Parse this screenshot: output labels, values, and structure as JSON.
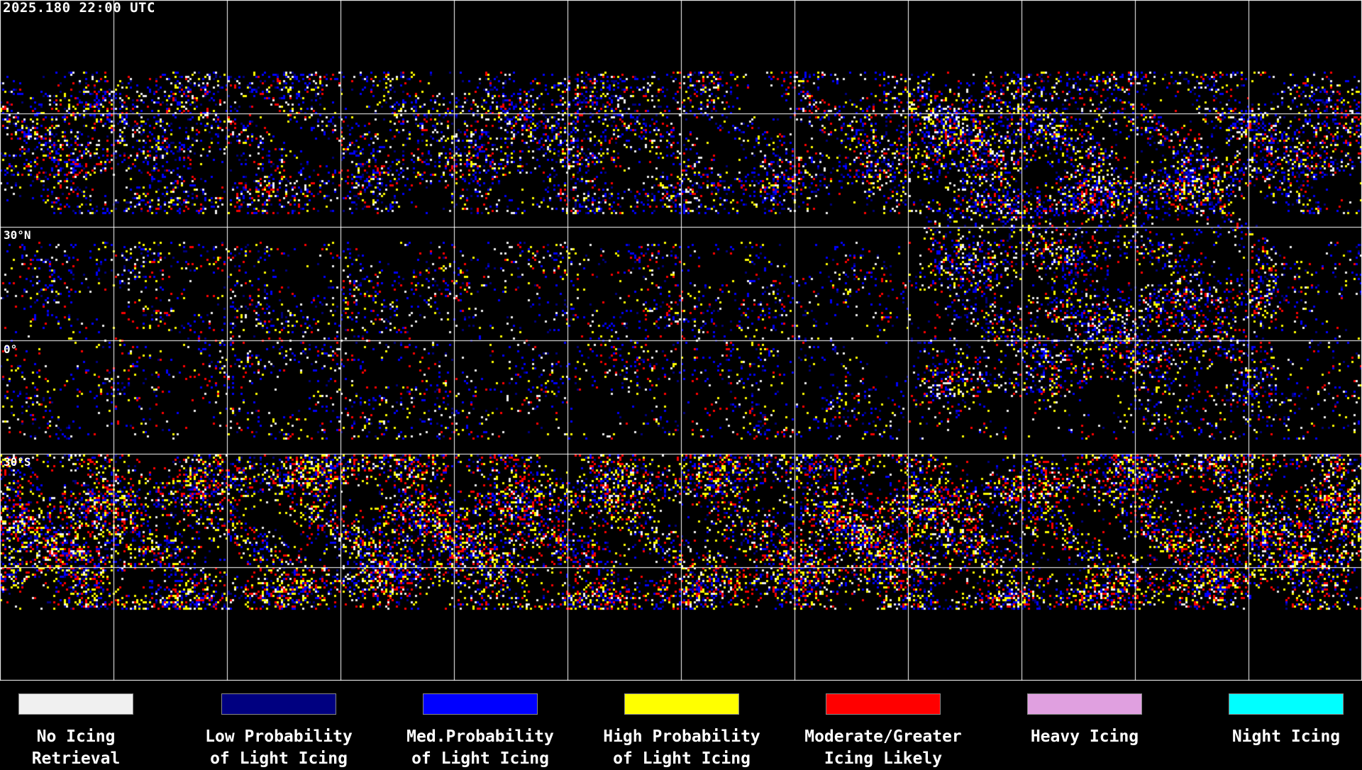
{
  "timestamp": "2025.180 22:00 UTC",
  "latitude_labels": [
    "30°N",
    "0°",
    "30°S"
  ],
  "legend": [
    {
      "line1": "No Icing",
      "line2": "Retrieval",
      "color": "#f0f0f0"
    },
    {
      "line1": "Low Probability",
      "line2": "of Light Icing",
      "color": "#000080"
    },
    {
      "line1": "Med.Probability",
      "line2": "of Light Icing",
      "color": "#0000ff"
    },
    {
      "line1": "High Probability",
      "line2": "of Light Icing",
      "color": "#ffff00"
    },
    {
      "line1": "Moderate/Greater",
      "line2": "Icing Likely",
      "color": "#ff0000"
    },
    {
      "line1": "Heavy Icing",
      "line2": "",
      "color": "#e0a0e0"
    },
    {
      "line1": "Night Icing",
      "line2": "",
      "color": "#00ffff"
    }
  ]
}
